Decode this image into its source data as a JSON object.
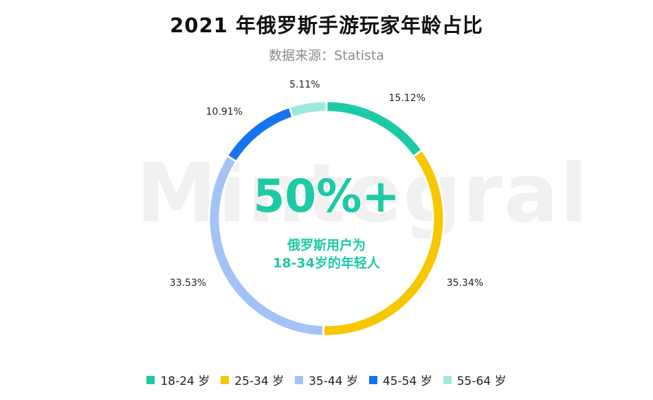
{
  "title": "2021 年俄罗斯手游玩家年龄占比",
  "subtitle": "数据来源：Statista",
  "watermark": "Mintegral",
  "center": {
    "headline": "50%+",
    "line1": "俄罗斯用户为",
    "line2": "18-34岁的年轻人"
  },
  "chart_data": {
    "type": "pie",
    "variant": "donut",
    "categories": [
      "18-24 岁",
      "25-34 岁",
      "35-44 岁",
      "45-54 岁",
      "55-64 岁"
    ],
    "values": [
      15.12,
      35.34,
      33.53,
      10.91,
      5.11
    ],
    "labels": [
      "15.12%",
      "35.34%",
      "33.53%",
      "10.91%",
      "5.11%"
    ],
    "colors": [
      "#1ec9a6",
      "#f7c700",
      "#a3c3f7",
      "#1673f0",
      "#9de8dc"
    ],
    "legend_position": "bottom"
  }
}
